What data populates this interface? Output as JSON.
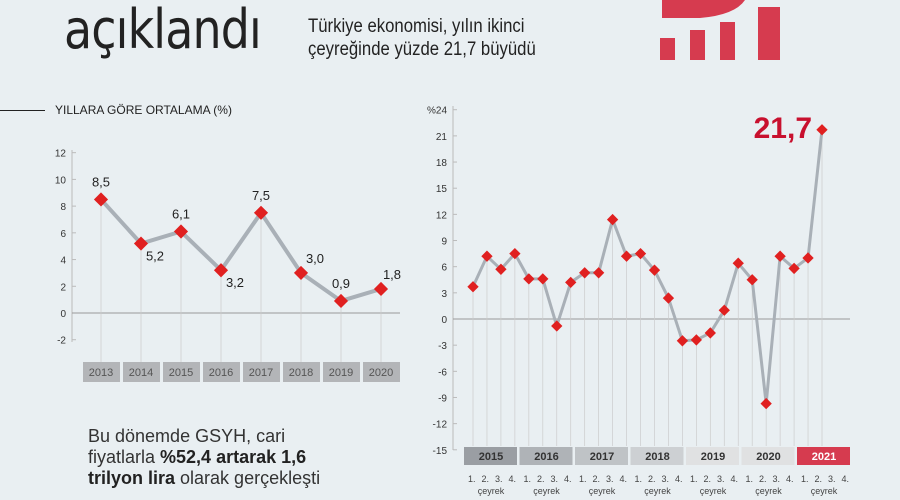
{
  "header": {
    "headline": "açıklandı",
    "subtitle_line1": "Türkiye ekonomisi, yılın ikinci",
    "subtitle_line2": "çeyreğinde yüzde 21,7 büyüdü"
  },
  "colors": {
    "accent": "#d63b4f",
    "marker": "#e02020",
    "line": "#a9b0b7",
    "background": "#e9eff2"
  },
  "note": {
    "part1": "Bu dönemde GSYH, cari",
    "part2": "fiyatlarla ",
    "bold1": "%52,4 artarak 1,6",
    "bold2": "trilyon lira",
    "part3": " olarak gerçekleşti"
  },
  "chart_data": [
    {
      "type": "line",
      "title": "YILLARA GÖRE ORTALAMA (%)",
      "categories": [
        "2013",
        "2014",
        "2015",
        "2016",
        "2017",
        "2018",
        "2019",
        "2020"
      ],
      "values": [
        8.5,
        5.2,
        6.1,
        3.2,
        7.5,
        3.0,
        0.9,
        1.8
      ],
      "data_labels": [
        "8,5",
        "5,2",
        "6,1",
        "3,2",
        "7,5",
        "3,0",
        "0,9",
        "1,8"
      ],
      "ylim": [
        -2,
        12
      ],
      "yticks": [
        "-2",
        "0",
        "2",
        "4",
        "6",
        "8",
        "10",
        "12"
      ],
      "grid": false
    },
    {
      "type": "line",
      "years": [
        "2015",
        "2016",
        "2017",
        "2018",
        "2019",
        "2020",
        "2021"
      ],
      "quarter_labels": [
        "1.",
        "2.",
        "3.",
        "4."
      ],
      "quarter_caption": "çeyrek",
      "values": [
        3.7,
        7.2,
        5.7,
        7.5,
        4.6,
        4.6,
        -0.8,
        4.2,
        5.3,
        5.3,
        11.4,
        7.2,
        7.5,
        5.6,
        2.4,
        -2.5,
        -2.4,
        -1.6,
        1.0,
        6.4,
        4.5,
        -9.7,
        7.2,
        5.8,
        7.0,
        21.7
      ],
      "highlight_label": "21,7",
      "ylim": [
        -15,
        24
      ],
      "yticks": [
        "-15",
        "-12",
        "-9",
        "-6",
        "-3",
        "0",
        "3",
        "6",
        "9",
        "12",
        "15",
        "18",
        "21",
        "%24"
      ],
      "year_colors": [
        "#9a9ea3",
        "#afb3b7",
        "#bfc3c6",
        "#cdd0d3",
        "#e0e1e2",
        "#e0e1e2",
        "#d63b4f"
      ],
      "grid": false
    }
  ]
}
